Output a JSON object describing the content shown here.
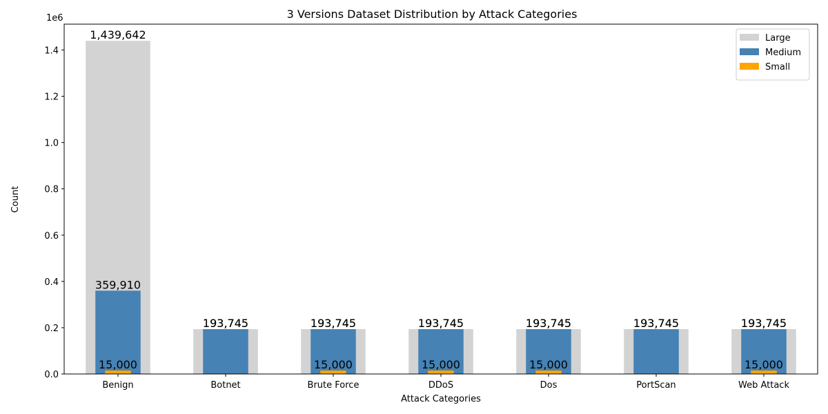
{
  "chart_data": {
    "type": "bar",
    "title": "3 Versions Dataset Distribution by Attack Categories",
    "x_label": "Attack Categories",
    "y_label": "Count",
    "y_offset_label": "1e6",
    "categories": [
      "Benign",
      "Botnet",
      "Brute Force",
      "DDoS",
      "Dos",
      "PortScan",
      "Web Attack"
    ],
    "series": [
      {
        "name": "Large",
        "color": "#d3d3d3",
        "values": [
          1439642,
          193745,
          193745,
          193745,
          193745,
          193745,
          193745
        ],
        "value_labels": [
          "1,439,642",
          "193,745",
          "193,745",
          "193,745",
          "193,745",
          "193,745",
          "193,745"
        ]
      },
      {
        "name": "Medium",
        "color": "#4682b4",
        "values": [
          359910,
          193745,
          193745,
          193745,
          193745,
          193745,
          193745
        ],
        "value_labels": [
          "359,910",
          "193,745",
          "193,745",
          "193,745",
          "193,745",
          "193,745",
          "193,745"
        ]
      },
      {
        "name": "Small",
        "color": "#ffa500",
        "values": [
          15000,
          null,
          15000,
          15000,
          15000,
          null,
          15000
        ],
        "value_labels": [
          "15,000",
          null,
          "15,000",
          "15,000",
          "15,000",
          null,
          "15,000"
        ]
      }
    ],
    "ylim": [
      0,
      1511624
    ],
    "yticks": [
      {
        "value": 0,
        "label": "0.0"
      },
      {
        "value": 200000,
        "label": "0.2"
      },
      {
        "value": 400000,
        "label": "0.4"
      },
      {
        "value": 600000,
        "label": "0.6"
      },
      {
        "value": 800000,
        "label": "0.8"
      },
      {
        "value": 1000000,
        "label": "1.0"
      },
      {
        "value": 1200000,
        "label": "1.2"
      },
      {
        "value": 1400000,
        "label": "1.4"
      }
    ],
    "legend_position": "upper right"
  }
}
